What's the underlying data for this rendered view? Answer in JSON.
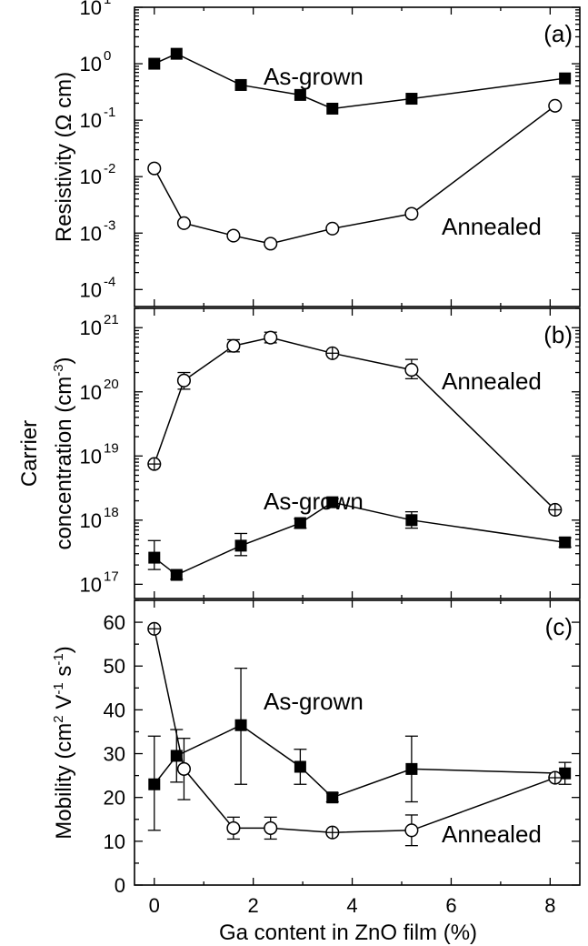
{
  "chart_data": [
    {
      "panel_label": "(a)",
      "type": "line",
      "ylabel": "Resistivity (Ω cm)",
      "yscale": "log",
      "ylim": [
        5e-05,
        10
      ],
      "xlim": [
        -0.4,
        8.6
      ],
      "yticks": [
        {
          "value": 0.0001,
          "base": "10",
          "exp": "-4"
        },
        {
          "value": 0.001,
          "base": "10",
          "exp": "-3"
        },
        {
          "value": 0.01,
          "base": "10",
          "exp": "-2"
        },
        {
          "value": 0.1,
          "base": "10",
          "exp": "-1"
        },
        {
          "value": 1,
          "base": "10",
          "exp": "0"
        },
        {
          "value": 10,
          "base": "10",
          "exp": "1"
        }
      ],
      "series": [
        {
          "name": "As-grown",
          "marker": "filled-square",
          "x": [
            0,
            0.45,
            1.75,
            2.95,
            3.6,
            5.2,
            8.3
          ],
          "y": [
            1.0,
            1.5,
            0.42,
            0.28,
            0.16,
            0.24,
            0.55
          ]
        },
        {
          "name": "Annealed",
          "marker": "open-circle",
          "x": [
            0,
            0.6,
            1.6,
            2.35,
            3.6,
            5.2,
            8.1
          ],
          "y": [
            0.014,
            0.0015,
            0.0009,
            0.00065,
            0.0012,
            0.0022,
            0.18
          ]
        }
      ]
    },
    {
      "panel_label": "(b)",
      "type": "line",
      "ylabel": [
        "Carrier",
        "concentration (cm",
        "-3",
        ")"
      ],
      "yscale": "log",
      "ylim": [
        60000000000000000,
        2000000000000000000000
      ],
      "xlim": [
        -0.4,
        8.6
      ],
      "yticks": [
        {
          "value": 100000000000000000,
          "base": "10",
          "exp": "17"
        },
        {
          "value": 1000000000000000000,
          "base": "10",
          "exp": "18"
        },
        {
          "value": 10000000000000000000,
          "base": "10",
          "exp": "19"
        },
        {
          "value": 100000000000000000000,
          "base": "10",
          "exp": "20"
        },
        {
          "value": 1000000000000000000000,
          "base": "10",
          "exp": "21"
        }
      ],
      "series": [
        {
          "name": "Annealed",
          "marker": "open-circle",
          "x": [
            0,
            0.6,
            1.6,
            2.35,
            3.6,
            5.2,
            8.1
          ],
          "y": [
            7500000000000000000,
            150000000000000000000,
            520000000000000000000,
            700000000000000000000,
            400000000000000000000,
            220000000000000000000,
            1450000000000000000
          ],
          "err_low": [
            0,
            110000000000000000000,
            420000000000000000000,
            580000000000000000000,
            0,
            160000000000000000000,
            0
          ],
          "err_high": [
            0,
            200000000000000000000,
            650000000000000000000,
            850000000000000000000,
            0,
            320000000000000000000,
            0
          ]
        },
        {
          "name": "As-grown",
          "marker": "filled-square",
          "x": [
            0,
            0.45,
            1.75,
            2.95,
            3.6,
            5.2,
            8.3
          ],
          "y": [
            260000000000000000,
            140000000000000000,
            400000000000000000,
            900000000000000000,
            1900000000000000000,
            1000000000000000000,
            450000000000000000
          ],
          "err_low": [
            170000000000000000,
            120000000000000000,
            280000000000000000,
            750000000000000000,
            1650000000000000000,
            750000000000000000,
            380000000000000000
          ],
          "err_high": [
            480000000000000000,
            160000000000000000,
            620000000000000000,
            1050000000000000000,
            2150000000000000000,
            1350000000000000000,
            530000000000000000
          ]
        }
      ]
    },
    {
      "panel_label": "(c)",
      "type": "line",
      "ylabel": [
        "Mobility (cm",
        "2",
        " V",
        "-1",
        " s",
        "-1",
        ")"
      ],
      "yscale": "linear",
      "ylim": [
        0,
        65
      ],
      "xlim": [
        -0.4,
        8.6
      ],
      "xlabel": "Ga content in ZnO film (%)",
      "yticks": [
        0,
        10,
        20,
        30,
        40,
        50,
        60
      ],
      "xticks": [
        0,
        2,
        4,
        6,
        8
      ],
      "series": [
        {
          "name": "As-grown",
          "marker": "filled-square",
          "x": [
            0,
            0.45,
            1.75,
            2.95,
            3.6,
            5.2,
            8.3
          ],
          "y": [
            23,
            29.5,
            36.5,
            27,
            20,
            26.5,
            25.5
          ],
          "err_low": [
            12.5,
            23.5,
            23,
            23,
            19,
            19,
            23
          ],
          "err_high": [
            34,
            35.5,
            49.5,
            31,
            21,
            34,
            28
          ]
        },
        {
          "name": "Annealed",
          "marker": "open-circle",
          "x": [
            0,
            0.6,
            1.6,
            2.35,
            3.6,
            5.2,
            8.1
          ],
          "y": [
            58.5,
            26.5,
            13,
            13,
            12,
            12.5,
            24.5
          ],
          "err_low": [
            58.5,
            19.5,
            10.5,
            10.5,
            12,
            9,
            24.5
          ],
          "err_high": [
            58.5,
            33.5,
            15.5,
            15.5,
            12,
            16,
            24.5
          ]
        }
      ]
    }
  ]
}
